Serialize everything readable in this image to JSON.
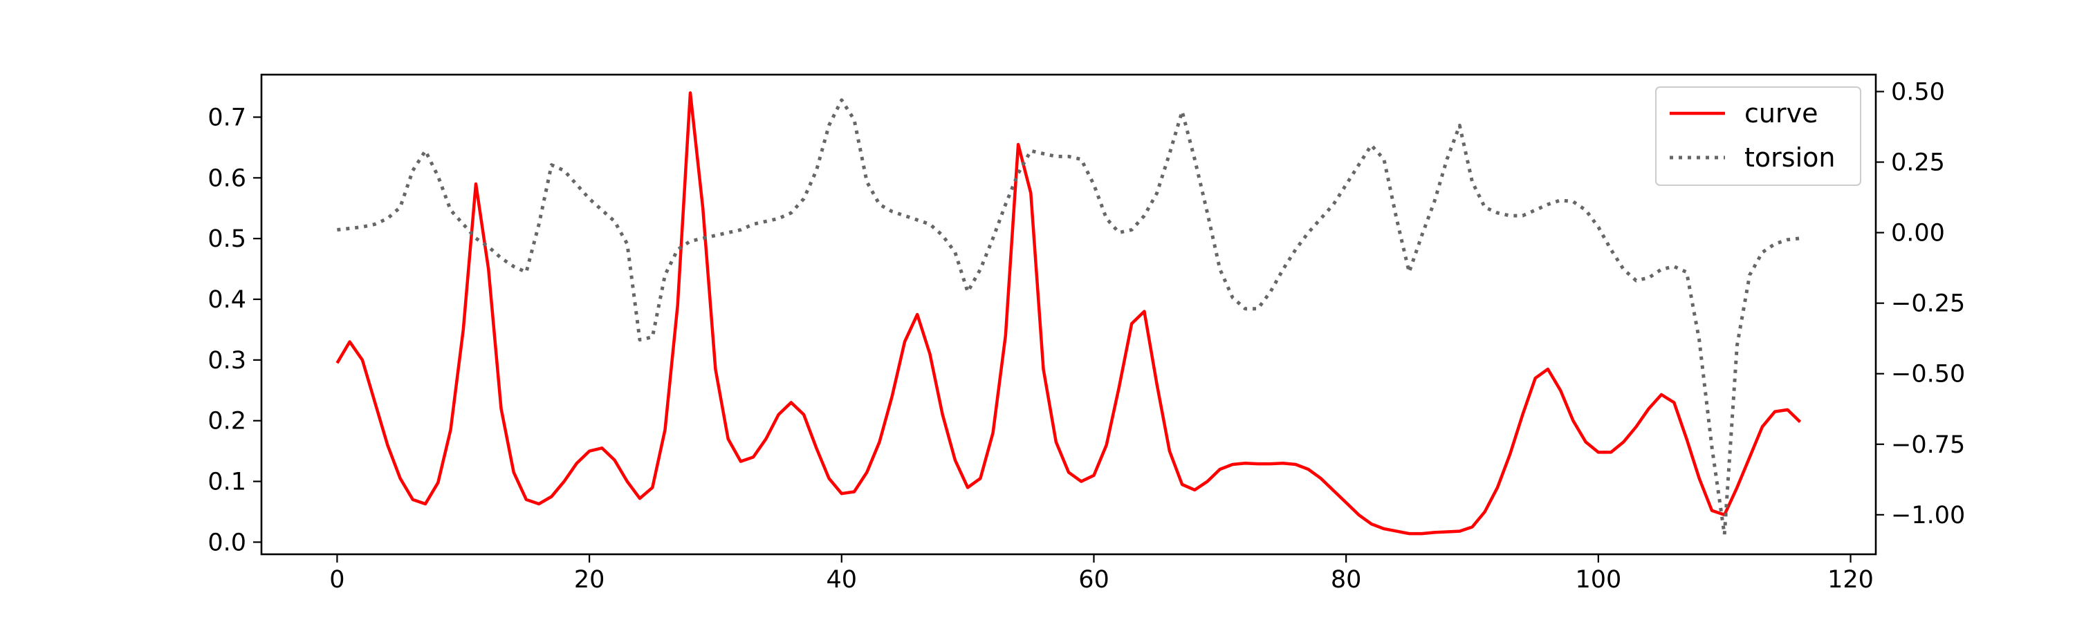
{
  "chart_data": {
    "type": "line",
    "title": "",
    "xlabel": "",
    "ylabel": "",
    "xlim": [
      -6,
      122
    ],
    "ylim_left": [
      -0.02,
      0.77
    ],
    "ylim_right": [
      -1.14,
      0.56
    ],
    "x_ticks": [
      0,
      20,
      40,
      60,
      80,
      100,
      120
    ],
    "y_left_ticks": [
      0.0,
      0.1,
      0.2,
      0.3,
      0.4,
      0.5,
      0.6,
      0.7
    ],
    "y_right_ticks": [
      0.5,
      0.25,
      0.0,
      -0.25,
      -0.5,
      -0.75,
      -1.0
    ],
    "legend_position": "top-right",
    "grid": false,
    "series": [
      {
        "name": "curve",
        "axis": "left",
        "color": "#ff0000",
        "style": "solid",
        "x": [
          0,
          1,
          2,
          3,
          4,
          5,
          6,
          7,
          8,
          9,
          10,
          11,
          12,
          13,
          14,
          15,
          16,
          17,
          18,
          19,
          20,
          21,
          22,
          23,
          24,
          25,
          26,
          27,
          28,
          29,
          30,
          31,
          32,
          33,
          34,
          35,
          36,
          37,
          38,
          39,
          40,
          41,
          42,
          43,
          44,
          45,
          46,
          47,
          48,
          49,
          50,
          51,
          52,
          53,
          54,
          55,
          56,
          57,
          58,
          59,
          60,
          61,
          62,
          63,
          64,
          65,
          66,
          67,
          68,
          69,
          70,
          71,
          72,
          73,
          74,
          75,
          76,
          77,
          78,
          79,
          80,
          81,
          82,
          83,
          84,
          85,
          86,
          87,
          88,
          89,
          90,
          91,
          92,
          93,
          94,
          95,
          96,
          97,
          98,
          99,
          100,
          101,
          102,
          103,
          104,
          105,
          106,
          107,
          108,
          109,
          110,
          111,
          112,
          113,
          114,
          115,
          116
        ],
        "values": [
          0.295,
          0.33,
          0.3,
          0.23,
          0.16,
          0.105,
          0.07,
          0.063,
          0.098,
          0.185,
          0.35,
          0.59,
          0.45,
          0.22,
          0.115,
          0.07,
          0.063,
          0.075,
          0.1,
          0.13,
          0.15,
          0.155,
          0.135,
          0.1,
          0.072,
          0.09,
          0.185,
          0.39,
          0.74,
          0.55,
          0.285,
          0.17,
          0.133,
          0.14,
          0.17,
          0.21,
          0.23,
          0.21,
          0.155,
          0.105,
          0.08,
          0.083,
          0.115,
          0.165,
          0.24,
          0.33,
          0.375,
          0.31,
          0.21,
          0.135,
          0.09,
          0.105,
          0.18,
          0.34,
          0.655,
          0.575,
          0.285,
          0.165,
          0.115,
          0.1,
          0.11,
          0.16,
          0.255,
          0.36,
          0.38,
          0.26,
          0.15,
          0.095,
          0.086,
          0.1,
          0.12,
          0.128,
          0.13,
          0.129,
          0.129,
          0.13,
          0.128,
          0.12,
          0.105,
          0.085,
          0.065,
          0.045,
          0.03,
          0.022,
          0.018,
          0.014,
          0.014,
          0.016,
          0.017,
          0.018,
          0.025,
          0.05,
          0.09,
          0.145,
          0.21,
          0.27,
          0.285,
          0.25,
          0.2,
          0.165,
          0.148,
          0.148,
          0.165,
          0.19,
          0.22,
          0.243,
          0.23,
          0.17,
          0.105,
          0.052,
          0.045,
          0.09,
          0.14,
          0.19,
          0.215,
          0.218,
          0.198
        ]
      },
      {
        "name": "torsion",
        "axis": "right",
        "color": "#666666",
        "style": "dotted",
        "x": [
          0,
          1,
          2,
          3,
          4,
          5,
          6,
          7,
          8,
          9,
          10,
          11,
          12,
          13,
          14,
          15,
          16,
          17,
          18,
          19,
          20,
          21,
          22,
          23,
          24,
          25,
          26,
          27,
          28,
          29,
          30,
          31,
          32,
          33,
          34,
          35,
          36,
          37,
          38,
          39,
          40,
          41,
          42,
          43,
          44,
          45,
          46,
          47,
          48,
          49,
          50,
          51,
          52,
          53,
          54,
          55,
          56,
          57,
          58,
          59,
          60,
          61,
          62,
          63,
          64,
          65,
          66,
          67,
          68,
          69,
          70,
          71,
          72,
          73,
          74,
          75,
          76,
          77,
          78,
          79,
          80,
          81,
          82,
          83,
          84,
          85,
          86,
          87,
          88,
          89,
          90,
          91,
          92,
          93,
          94,
          95,
          96,
          97,
          98,
          99,
          100,
          101,
          102,
          103,
          104,
          105,
          106,
          107,
          108,
          109,
          110,
          111,
          112,
          113,
          114,
          115,
          116
        ],
        "values": [
          0.01,
          0.015,
          0.02,
          0.03,
          0.05,
          0.09,
          0.22,
          0.29,
          0.2,
          0.08,
          0.03,
          -0.02,
          -0.05,
          -0.09,
          -0.12,
          -0.14,
          0.03,
          0.24,
          0.22,
          0.17,
          0.12,
          0.08,
          0.04,
          -0.04,
          -0.38,
          -0.37,
          -0.15,
          -0.06,
          -0.03,
          -0.02,
          -0.01,
          0.0,
          0.01,
          0.03,
          0.04,
          0.05,
          0.07,
          0.12,
          0.22,
          0.38,
          0.47,
          0.4,
          0.18,
          0.1,
          0.075,
          0.06,
          0.045,
          0.03,
          -0.01,
          -0.07,
          -0.21,
          -0.13,
          -0.02,
          0.1,
          0.21,
          0.29,
          0.28,
          0.27,
          0.27,
          0.26,
          0.17,
          0.05,
          0.0,
          0.01,
          0.06,
          0.14,
          0.28,
          0.43,
          0.26,
          0.07,
          -0.13,
          -0.23,
          -0.27,
          -0.27,
          -0.21,
          -0.13,
          -0.06,
          0.0,
          0.05,
          0.1,
          0.17,
          0.24,
          0.31,
          0.26,
          0.05,
          -0.14,
          -0.01,
          0.11,
          0.26,
          0.38,
          0.18,
          0.09,
          0.07,
          0.06,
          0.06,
          0.08,
          0.1,
          0.115,
          0.11,
          0.08,
          0.02,
          -0.06,
          -0.13,
          -0.17,
          -0.16,
          -0.13,
          -0.12,
          -0.14,
          -0.38,
          -0.76,
          -1.07,
          -0.4,
          -0.15,
          -0.07,
          -0.04,
          -0.025,
          -0.02
        ]
      }
    ]
  }
}
